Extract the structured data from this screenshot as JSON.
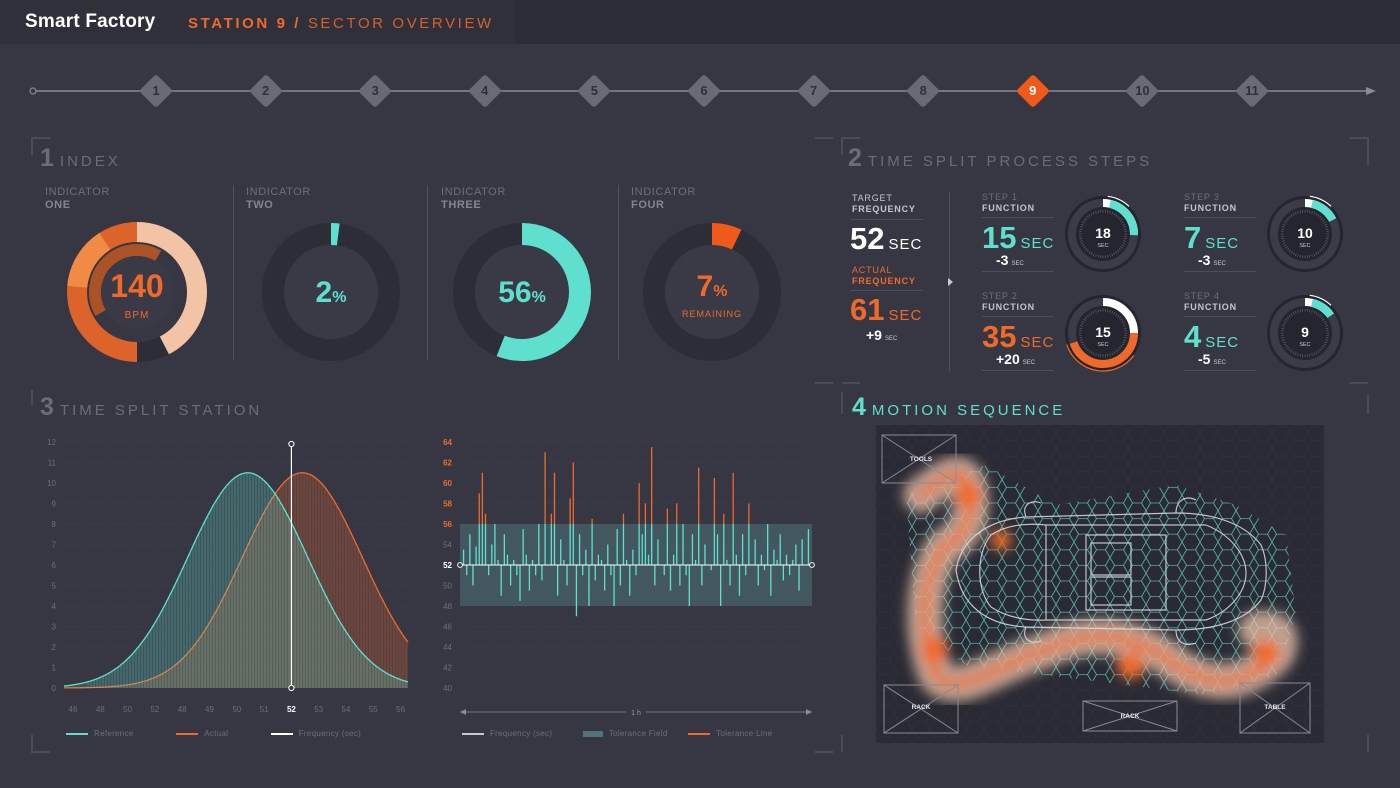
{
  "app": {
    "title": "Smart Factory",
    "station": "STATION 9",
    "separator": " / ",
    "sector": "SECTOR OVERVIEW"
  },
  "stepper": {
    "steps": [
      "1",
      "2",
      "3",
      "4",
      "5",
      "6",
      "7",
      "8",
      "9",
      "10",
      "11"
    ],
    "active": 9
  },
  "sections": {
    "index": {
      "num": "1",
      "title": "INDEX"
    },
    "time_split_process": {
      "num": "2",
      "title": "TIME SPLIT PROCESS STEPS"
    },
    "time_split_station": {
      "num": "3",
      "title": "TIME SPLIT STATION"
    },
    "motion_sequence": {
      "num": "4",
      "title": "MOTION SEQUENCE"
    }
  },
  "indicators": [
    {
      "label": "INDICATOR",
      "name": "ONE",
      "value": "140",
      "sub": "BPM"
    },
    {
      "label": "INDICATOR",
      "name": "TWO",
      "value": "2",
      "unit": "%",
      "fraction": 0.02
    },
    {
      "label": "INDICATOR",
      "name": "THREE",
      "value": "56",
      "unit": "%",
      "fraction": 0.56
    },
    {
      "label": "INDICATOR",
      "name": "FOUR",
      "value": "7",
      "unit": "%",
      "sub": "REMAINING",
      "fraction": 0.07
    }
  ],
  "frequency": {
    "target": {
      "label": "TARGET",
      "name": "FREQUENCY",
      "value": "52",
      "unit": "SEC"
    },
    "actual": {
      "label": "ACTUAL",
      "name": "FREQUENCY",
      "value": "61",
      "unit": "SEC",
      "delta": "+9",
      "delta_unit": "SEC"
    }
  },
  "functions": [
    {
      "label": "STEP 1",
      "name": "FUNCTION",
      "value": "15",
      "unit": "SEC",
      "delta": "-3",
      "delta_unit": "SEC",
      "dial": "18",
      "dial_unit": "SEC",
      "color": "#5fe0cf"
    },
    {
      "label": "STEP 3",
      "name": "FUNCTION",
      "value": "7",
      "unit": "SEC",
      "delta": "-3",
      "delta_unit": "SEC",
      "dial": "10",
      "dial_unit": "SEC",
      "color": "#5fe0cf"
    },
    {
      "label": "STEP 2",
      "name": "FUNCTION",
      "value": "35",
      "unit": "SEC",
      "delta": "+20",
      "delta_unit": "SEC",
      "dial": "15",
      "dial_unit": "SEC",
      "color": "#ef6a2a"
    },
    {
      "label": "STEP 4",
      "name": "FUNCTION",
      "value": "4",
      "unit": "SEC",
      "delta": "-5",
      "delta_unit": "SEC",
      "dial": "9",
      "dial_unit": "SEC",
      "color": "#5fe0cf"
    }
  ],
  "colors": {
    "accent": "#ef6a2a",
    "teal": "#5fe0cf",
    "bg": "#373744",
    "bar": "#2c2c37"
  },
  "chart_data": [
    {
      "type": "area",
      "y_ticks": [
        "0",
        "1",
        "2",
        "3",
        "4",
        "5",
        "6",
        "7",
        "8",
        "9",
        "10",
        "11",
        "12"
      ],
      "x_ticks": [
        "46",
        "48",
        "50",
        "52",
        "48",
        "49",
        "50",
        "51",
        "52",
        "53",
        "54",
        "55",
        "56"
      ],
      "highlight_tick": "52",
      "series": [
        {
          "name": "Reference",
          "color": "#5fe0cf",
          "peak_index": 6.4,
          "peak_value": 10.5,
          "spread": 2.2
        },
        {
          "name": "Actual",
          "color": "#ef6a2a",
          "peak_index": 8.4,
          "peak_value": 10.5,
          "spread": 2.2
        },
        {
          "name": "Frequency (sec)",
          "color": "#ffffff",
          "marker_index": 8
        }
      ],
      "legend": [
        "Reference",
        "Actual",
        "Frequency (sec)"
      ]
    },
    {
      "type": "bar",
      "y_ticks": [
        "40",
        "42",
        "44",
        "46",
        "48",
        "50",
        "52",
        "54",
        "56",
        "58",
        "60",
        "62",
        "64"
      ],
      "highlight_ticks": [
        "52",
        "56",
        "58",
        "60",
        "62",
        "64"
      ],
      "baseline": 52,
      "tolerance": [
        48,
        56
      ],
      "x_label": "1 h",
      "legend": [
        "Frequency (sec)",
        "Tolerance Field",
        "Tolerance Line"
      ],
      "values": [
        53.5,
        51,
        55,
        50,
        53.8,
        59,
        61,
        57,
        51,
        54,
        56,
        52.5,
        49,
        55,
        53,
        50,
        52.5,
        51,
        48.5,
        55.5,
        53,
        49.5,
        52.5,
        51,
        56,
        50.5,
        63,
        52,
        57,
        61,
        49,
        54.5,
        52.5,
        50,
        58.5,
        62,
        47,
        55,
        51,
        53.5,
        48,
        56.5,
        50.5,
        53,
        52.5,
        49.5,
        54,
        51,
        48,
        55.5,
        50,
        57,
        52.5,
        49,
        53.5,
        51,
        60,
        55,
        58,
        53,
        63.5,
        50,
        54.5,
        52,
        51,
        57.5,
        49.5,
        53,
        58,
        50,
        56,
        51,
        48,
        55,
        52.5,
        61.5,
        50,
        54,
        52,
        51.5,
        60.5,
        55,
        48,
        57,
        52.5,
        50,
        61,
        53,
        49,
        55,
        51,
        58,
        52,
        54.5,
        50,
        53,
        51.5,
        56,
        49,
        53.5,
        52.5,
        55,
        50.5,
        53,
        51,
        52.5,
        54,
        49.5,
        54.5,
        52,
        55.5
      ]
    }
  ],
  "motion": {
    "labels": [
      "TOOLS",
      "RACK",
      "RACK",
      "TABLE"
    ]
  }
}
